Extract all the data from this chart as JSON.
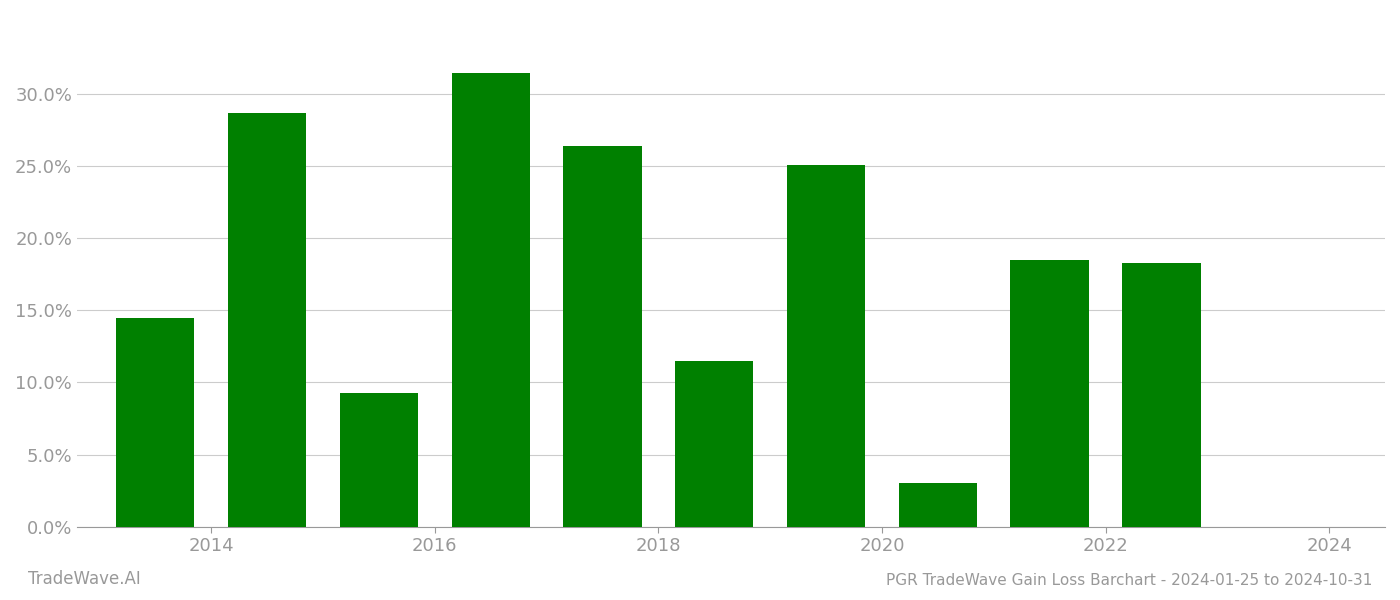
{
  "years": [
    2013.5,
    2014.5,
    2015.5,
    2016.5,
    2017.5,
    2018.5,
    2019.5,
    2020.5,
    2021.5,
    2022.5
  ],
  "values": [
    0.145,
    0.287,
    0.093,
    0.315,
    0.264,
    0.115,
    0.251,
    0.03,
    0.185,
    0.183
  ],
  "bar_color": "#008000",
  "bar_width": 0.7,
  "ylim": [
    0,
    0.355
  ],
  "yticks": [
    0.0,
    0.05,
    0.1,
    0.15,
    0.2,
    0.25,
    0.3
  ],
  "xlim": [
    2012.8,
    2024.5
  ],
  "xticks": [
    2014,
    2016,
    2018,
    2020,
    2022,
    2024
  ],
  "title": "PGR TradeWave Gain Loss Barchart - 2024-01-25 to 2024-10-31",
  "watermark_left": "TradeWave.AI",
  "background_color": "#ffffff",
  "grid_color": "#cccccc",
  "tick_color": "#999999",
  "label_color": "#999999",
  "title_fontsize": 11,
  "watermark_fontsize": 12,
  "tick_fontsize": 13
}
